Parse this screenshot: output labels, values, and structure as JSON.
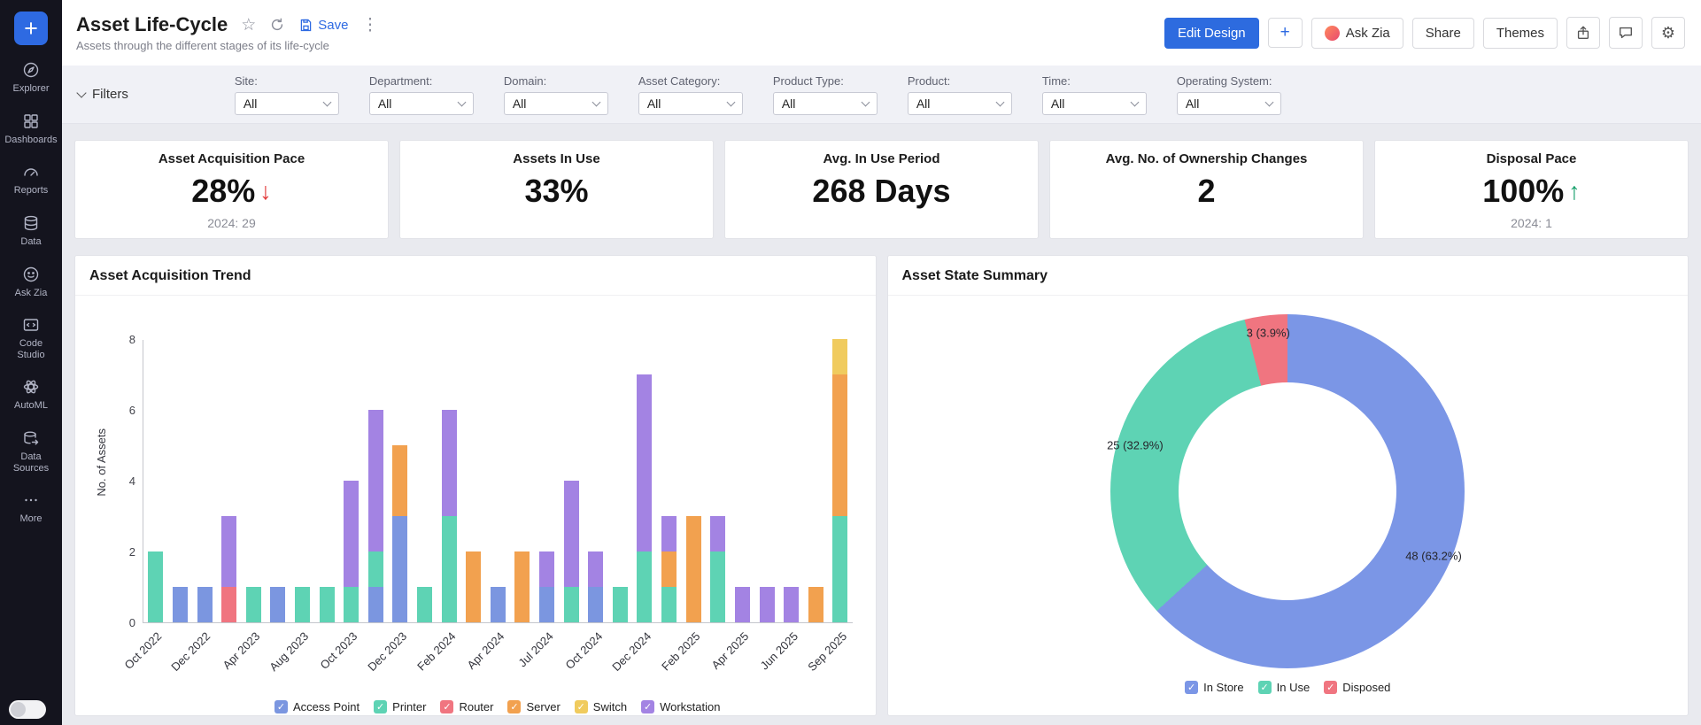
{
  "icons": {
    "plus": "+",
    "star": "☆",
    "kebab": "⋮",
    "gear": "⚙",
    "check": "✓"
  },
  "sidebar": {
    "items": [
      {
        "id": "explorer",
        "label": "Explorer"
      },
      {
        "id": "dashboards",
        "label": "Dashboards"
      },
      {
        "id": "reports",
        "label": "Reports"
      },
      {
        "id": "data",
        "label": "Data"
      },
      {
        "id": "ask-zia",
        "label": "Ask Zia"
      },
      {
        "id": "code-studio",
        "label": "Code Studio"
      },
      {
        "id": "automl",
        "label": "AutoML"
      },
      {
        "id": "data-sources",
        "label": "Data Sources"
      },
      {
        "id": "more",
        "label": "More"
      }
    ]
  },
  "header": {
    "title": "Asset Life-Cycle",
    "subtitle": "Assets through the different stages of its life-cycle",
    "save_label": "Save",
    "actions": {
      "edit_design": "Edit Design",
      "plus": "+",
      "ask_zia": "Ask Zia",
      "share": "Share",
      "themes": "Themes"
    }
  },
  "filters": {
    "label": "Filters",
    "dropdowns": [
      {
        "label": "Site:",
        "value": "All"
      },
      {
        "label": "Department:",
        "value": "All"
      },
      {
        "label": "Domain:",
        "value": "All"
      },
      {
        "label": "Asset Category:",
        "value": "All"
      },
      {
        "label": "Product Type:",
        "value": "All"
      },
      {
        "label": "Product:",
        "value": "All"
      },
      {
        "label": "Time:",
        "value": "All"
      },
      {
        "label": "Operating System:",
        "value": "All"
      }
    ]
  },
  "kpis": [
    {
      "title": "Asset Acquisition Pace",
      "value": "28%",
      "trend": "down",
      "trend_icon": "↓",
      "sub": "2024: 29"
    },
    {
      "title": "Assets In Use",
      "value": "33%",
      "trend_icon": "",
      "sub": ""
    },
    {
      "title": "Avg. In Use Period",
      "value": "268 Days",
      "trend_icon": "",
      "sub": ""
    },
    {
      "title": "Avg. No. of Ownership Changes",
      "value": "2",
      "trend_icon": "",
      "sub": ""
    },
    {
      "title": "Disposal Pace",
      "value": "100%",
      "trend": "up",
      "trend_icon": "↑",
      "sub": "2024: 1"
    }
  ],
  "chart_data": [
    {
      "type": "bar",
      "stacked": true,
      "title": "Asset Acquisition Trend",
      "xlabel": "",
      "ylabel": "No. of Assets",
      "ylim": [
        0,
        8
      ],
      "yticks": [
        0,
        2,
        4,
        6,
        8
      ],
      "legend_position": "bottom",
      "categories": [
        "Oct 2022",
        "",
        "Dec 2022",
        "",
        "Apr 2023",
        "",
        "Aug 2023",
        "",
        "Oct 2023",
        "",
        "Dec 2023",
        "",
        "Feb 2024",
        "",
        "Apr 2024",
        "",
        "Jul 2024",
        "",
        "Oct 2024",
        "",
        "Dec 2024",
        "",
        "Feb 2025",
        "",
        "Apr 2025",
        "",
        "Jun 2025",
        "",
        "Sep 2025"
      ],
      "series": [
        {
          "name": "Access Point",
          "color": "#7b96e0",
          "values": [
            0,
            1,
            1,
            0,
            0,
            1,
            0,
            0,
            0,
            1,
            3,
            0,
            0,
            0,
            1,
            0,
            1,
            0,
            1,
            0,
            0,
            0,
            0,
            0,
            0,
            0,
            0,
            0,
            0
          ]
        },
        {
          "name": "Printer",
          "color": "#5ed3b4",
          "values": [
            2,
            0,
            0,
            0,
            1,
            0,
            1,
            1,
            1,
            1,
            0,
            1,
            3,
            0,
            0,
            0,
            0,
            1,
            0,
            1,
            2,
            1,
            0,
            2,
            0,
            0,
            0,
            0,
            3
          ]
        },
        {
          "name": "Router",
          "color": "#f07580",
          "values": [
            0,
            0,
            0,
            1,
            0,
            0,
            0,
            0,
            0,
            0,
            0,
            0,
            0,
            0,
            0,
            0,
            0,
            0,
            0,
            0,
            0,
            0,
            0,
            0,
            0,
            0,
            0,
            0,
            0
          ]
        },
        {
          "name": "Server",
          "color": "#f2a14f",
          "values": [
            0,
            0,
            0,
            0,
            0,
            0,
            0,
            0,
            0,
            0,
            2,
            0,
            0,
            2,
            0,
            2,
            0,
            0,
            0,
            0,
            0,
            1,
            3,
            0,
            0,
            0,
            0,
            1,
            4
          ]
        },
        {
          "name": "Switch",
          "color": "#f0cb5e",
          "values": [
            0,
            0,
            0,
            0,
            0,
            0,
            0,
            0,
            0,
            0,
            0,
            0,
            0,
            0,
            0,
            0,
            0,
            0,
            0,
            0,
            0,
            0,
            0,
            0,
            0,
            0,
            0,
            0,
            1
          ]
        },
        {
          "name": "Workstation",
          "color": "#a383e3",
          "values": [
            0,
            0,
            0,
            2,
            0,
            0,
            0,
            0,
            3,
            4,
            0,
            0,
            3,
            0,
            0,
            0,
            1,
            3,
            1,
            0,
            5,
            1,
            0,
            1,
            1,
            1,
            1,
            0,
            0
          ]
        }
      ]
    },
    {
      "type": "pie",
      "donut": true,
      "title": "Asset State Summary",
      "start_angle": 0,
      "legend_position": "bottom",
      "slices": [
        {
          "label": "In Store",
          "value": 48,
          "pct": 63.2,
          "display": "48 (63.2%)",
          "color": "#7b96e6"
        },
        {
          "label": "In Use",
          "value": 25,
          "pct": 32.9,
          "display": "25 (32.9%)",
          "color": "#5ed3b4"
        },
        {
          "label": "Disposed",
          "value": 3,
          "pct": 3.9,
          "display": "3 (3.9%)",
          "color": "#f07580"
        }
      ]
    }
  ]
}
